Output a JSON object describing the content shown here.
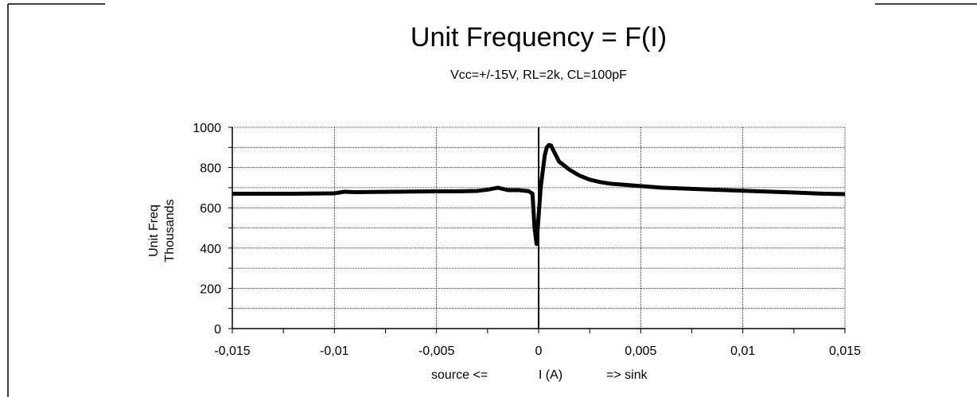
{
  "chart_data": {
    "type": "line",
    "title": "Unit Frequency = F(I)",
    "subtitle": "Vcc=+/-15V, RL=2k, CL=100pF",
    "ylabel": [
      "Unit Freq",
      "Thousands"
    ],
    "xlabel": {
      "left": "source <=",
      "center": "I (A)",
      "right": "=> sink"
    },
    "xlim": [
      -0.015,
      0.015
    ],
    "ylim": [
      0,
      1000
    ],
    "x_ticks": [
      -0.015,
      -0.01,
      -0.005,
      0,
      0.005,
      0.01,
      0.015
    ],
    "x_tick_labels": [
      "-0,015",
      "-0,01",
      "-0,005",
      "0",
      "0,005",
      "0,01",
      "0,015"
    ],
    "y_ticks": [
      0,
      200,
      400,
      600,
      800,
      1000
    ],
    "y_tick_labels": [
      "0",
      "200",
      "400",
      "600",
      "800",
      "1000"
    ],
    "grid": true,
    "series": [
      {
        "color": "#000000",
        "x": [
          -0.015,
          -0.012,
          -0.01,
          -0.0095,
          -0.009,
          -0.007,
          -0.005,
          -0.004,
          -0.003,
          -0.0025,
          -0.002,
          -0.0018,
          -0.0015,
          -0.001,
          -0.0005,
          -0.0003,
          -0.0002,
          -0.0001,
          0,
          0.0001,
          0.0002,
          0.0003,
          0.0004,
          0.0005,
          0.0006,
          0.0008,
          0.001,
          0.0015,
          0.002,
          0.0025,
          0.003,
          0.0035,
          0.004,
          0.005,
          0.006,
          0.008,
          0.01,
          0.012,
          0.014,
          0.015
        ],
        "y": [
          670,
          670,
          672,
          680,
          678,
          680,
          682,
          682,
          684,
          690,
          700,
          695,
          688,
          688,
          683,
          670,
          500,
          420,
          560,
          700,
          780,
          860,
          900,
          912,
          910,
          870,
          830,
          790,
          760,
          740,
          728,
          720,
          716,
          708,
          700,
          692,
          685,
          678,
          670,
          668
        ]
      }
    ]
  }
}
